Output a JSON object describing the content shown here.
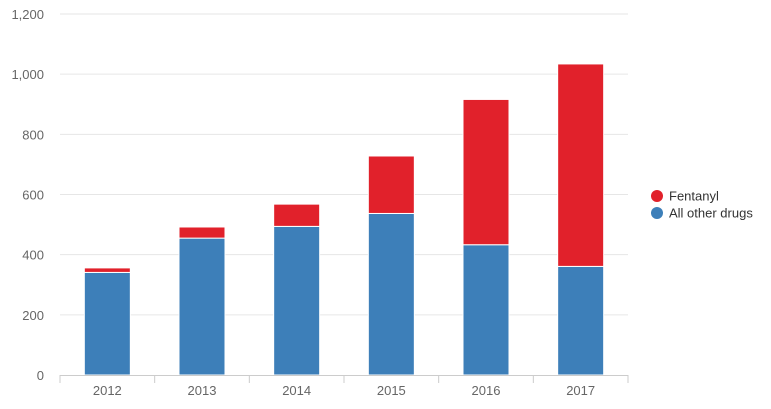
{
  "chart_data": {
    "type": "bar",
    "stacked": true,
    "categories": [
      "2012",
      "2013",
      "2014",
      "2015",
      "2016",
      "2017"
    ],
    "series": [
      {
        "name": "All other drugs",
        "color": "#3d7fb9",
        "values": [
          341,
          455,
          494,
          537,
          433,
          361
        ]
      },
      {
        "name": "Fentanyl",
        "color": "#e1212b",
        "values": [
          15,
          37,
          74,
          191,
          483,
          673
        ]
      }
    ],
    "ylim": [
      0,
      1200
    ],
    "yticks": [
      0,
      200,
      400,
      600,
      800,
      1000,
      1200
    ],
    "ytick_labels": [
      "0",
      "200",
      "400",
      "600",
      "800",
      "1,000",
      "1,200"
    ],
    "grid": true,
    "legend": {
      "position": "right",
      "items": [
        {
          "label": "Fentanyl",
          "color": "#e1212b"
        },
        {
          "label": "All other drugs",
          "color": "#3d7fb9"
        }
      ]
    }
  }
}
